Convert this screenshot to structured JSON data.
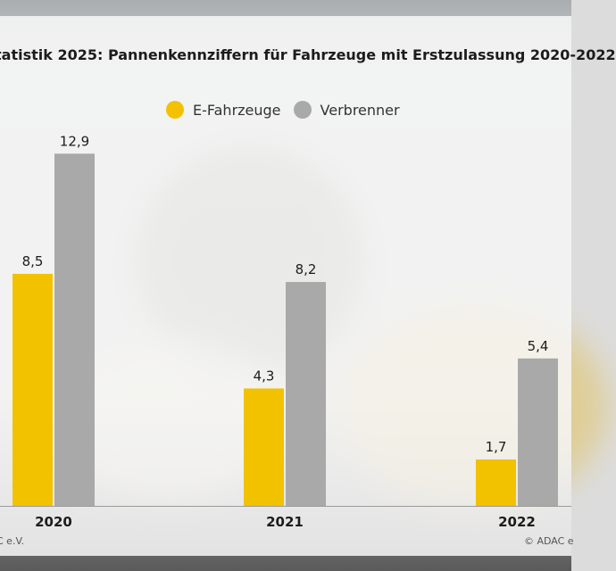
{
  "footer": {
    "source_left": "C e.V.",
    "source_right": "© ADAC e"
  },
  "colors": {
    "e_fahrzeuge": "#f2c200",
    "verbrenner": "#a9a9a9"
  },
  "chart_data": {
    "type": "bar",
    "title": "tatistik 2025: Pannenkennziffern für Fahrzeuge mit Erstzulassung 2020-2022",
    "legend_position": "top-center",
    "grid": false,
    "categories": [
      "2020",
      "2021",
      "2022"
    ],
    "series": [
      {
        "name": "E-Fahrzeuge",
        "color": "#f2c200",
        "values": [
          8.5,
          4.3,
          1.7
        ],
        "labels": [
          "8,5",
          "4,3",
          "1,7"
        ]
      },
      {
        "name": "Verbrenner",
        "color": "#a9a9a9",
        "values": [
          12.9,
          8.2,
          5.4
        ],
        "labels": [
          "12,9",
          "8,2",
          "5,4"
        ]
      }
    ],
    "ylim": [
      0,
      15
    ],
    "xlabel": "",
    "ylabel": ""
  }
}
